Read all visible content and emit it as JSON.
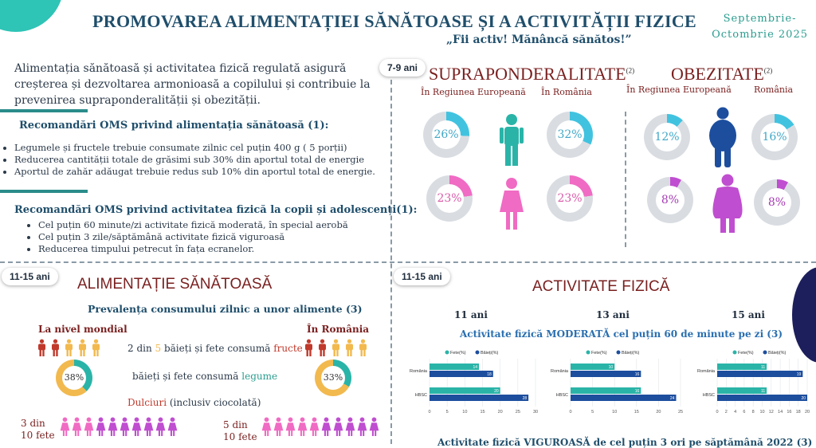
{
  "header": {
    "title": "PROMOVAREA ALIMENTAȚIEI SĂNĂTOASE ȘI A ACTIVITĂȚII FIZICE",
    "slogan": "„Fii activ! Mănâncă sănătos!”",
    "date_line1": "Septembrie-",
    "date_line2": "Octombrie 2025"
  },
  "intro": "Alimentația sănătoasă și activitatea fizică regulată asigură creșterea și dezvoltarea armonioasă a copilului și contribuie la prevenirea supraponderalității și obezității.",
  "diet_recs": {
    "heading": "Recomandări OMS privind alimentația sănătoasă (1):",
    "items": [
      "Legumele și fructele trebuie consumate zilnic cel puțin 400 g ( 5 porții)",
      "Reducerea cantității totale de grăsimi sub 30% din aportul total de energie",
      "Aportul de zahăr adăugat trebuie redus sub 10% din aportul total de energie."
    ]
  },
  "activity_recs": {
    "heading": "Recomandări OMS privind activitatea fizică la copii și adolescenți(1):",
    "items": [
      "Cel puțin 60 minute/zi activitate fizică moderată, în special aerobă",
      "Cel puțin 3 zile/săptămână activitate fizică viguroasă",
      "Reducerea timpului petrecut în fața ecranelor."
    ]
  },
  "overweight": {
    "age_badge": "7-9 ani",
    "title": "SUPRAPONDERALITATE",
    "title_ref": "(2)",
    "label_eu": "În Regiunea Europeană",
    "label_ro": "În România",
    "boys_eu": "26%",
    "boys_ro": "32%",
    "girls_eu": "23%",
    "girls_ro": "23%",
    "values": {
      "boys_eu": 26,
      "boys_ro": 32,
      "girls_eu": 23,
      "girls_ro": 23
    }
  },
  "obesity": {
    "title": "OBEZITATE",
    "title_ref": "(2)",
    "label_eu": "În Regiunea Europeană",
    "label_ro": "România",
    "boys_eu": "12%",
    "boys_ro": "16%",
    "girls_eu": "8%",
    "girls_ro": "8%",
    "values": {
      "boys_eu": 12,
      "boys_ro": 16,
      "girls_eu": 8,
      "girls_ro": 8
    }
  },
  "healthy_food": {
    "age_badge": "11-15 ani",
    "title": "ALIMENTAȚIE SĂNĂTOASĂ",
    "subtitle": "Prevalența consumului zilnic a unor alimente  (3)",
    "label_world": "La nivel mondial",
    "label_ro": "În România",
    "fruit_text_a": "2 din ",
    "fruit_text_b": "5",
    "fruit_text_c": " băieți și fete consumă ",
    "fruit_text_d": "fructe",
    "veg_world": "38%",
    "veg_ro": "33%",
    "veg_text_a": "băieți și fete consumă ",
    "veg_text_b": "legume",
    "sweets_a": "Dulciuri",
    "sweets_b": " (inclusiv ciocolată)",
    "sweets_world_a": "3 din",
    "sweets_world_b": "10 fete",
    "sweets_ro_a": "5 din",
    "sweets_ro_b": "10 fete",
    "values": {
      "veg_world": 38,
      "veg_ro": 33
    }
  },
  "activity": {
    "age_badge": "11-15 ani",
    "title": "ACTIVITATE FIZICĂ",
    "age_11": "11 ani",
    "age_13": "13 ani",
    "age_15": "15 ani",
    "moderate_title": "Activitate fizică MODERATĂ  cel puțin 60 de minute pe zi (3)",
    "vigorous_title": "Activitate fizică VIGUROASĂ  de cel puțin 3 ori pe săptămână 2022 (3)"
  },
  "chart_data": [
    {
      "type": "bar",
      "title": "11 ani",
      "categories": [
        "România",
        "HBSC"
      ],
      "series": [
        {
          "name": "Fete(%)",
          "values": [
            14,
            20
          ]
        },
        {
          "name": "Băieți(%)",
          "values": [
            18,
            28
          ]
        }
      ],
      "xlim": [
        0,
        30
      ],
      "ticks": [
        "0",
        "5",
        "10",
        "15",
        "20",
        "25",
        "30"
      ]
    },
    {
      "type": "bar",
      "title": "13 ani",
      "categories": [
        "România",
        "HBSC"
      ],
      "series": [
        {
          "name": "Fete(%)",
          "values": [
            10,
            16
          ]
        },
        {
          "name": "Băieți(%)",
          "values": [
            16,
            24
          ]
        }
      ],
      "xlim": [
        0,
        25
      ],
      "ticks": [
        "0",
        "5",
        "10",
        "15",
        "20",
        "25"
      ]
    },
    {
      "type": "bar",
      "title": "15 ani",
      "categories": [
        "România",
        "HBSC"
      ],
      "series": [
        {
          "name": "Fete(%)",
          "values": [
            11,
            11
          ]
        },
        {
          "name": "Băieți(%)",
          "values": [
            19,
            20
          ]
        }
      ],
      "xlim": [
        0,
        20
      ],
      "ticks": [
        "0",
        "2",
        "4",
        "6",
        "8",
        "10",
        "12",
        "14",
        "16",
        "18",
        "20"
      ]
    }
  ],
  "colors": {
    "teal": "#2ab4a8",
    "navy": "#1d4e9e",
    "blue_ring": "#41c3e0",
    "pink": "#f06bc3",
    "purple": "#c04ed0",
    "orange": "#f2b94e",
    "red_person": "#c0392b"
  }
}
